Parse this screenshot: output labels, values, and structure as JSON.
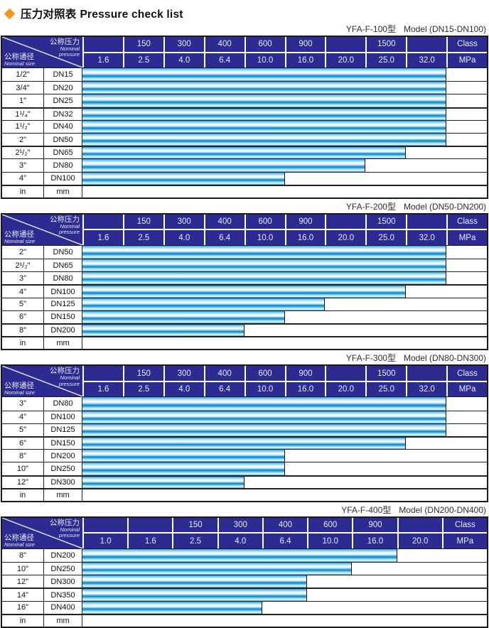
{
  "page": {
    "title_zh": "压力对照表",
    "title_en": "Pressure check list",
    "diamond_color": "#f7941d",
    "navy_color": "#2b2b91",
    "bar_color": "#29a3dd"
  },
  "header_labels": {
    "pressure_zh": "公称压力",
    "pressure_en1": "Nominal",
    "pressure_en2": "pressure",
    "size_zh": "公称通径",
    "size_en": "Nominal size"
  },
  "tables": [
    {
      "model": "YFA-F-100型",
      "range": "Model (DN15-DN100)",
      "classes": [
        "",
        "150",
        "300",
        "400",
        "600",
        "900",
        "",
        "1500",
        "",
        "Class"
      ],
      "mpa": [
        "1.6",
        "2.5",
        "4.0",
        "6.4",
        "10.0",
        "16.0",
        "20.0",
        "25.0",
        "32.0",
        "MPa"
      ],
      "rows": [
        {
          "size": "1/2\"",
          "dn": "DN15",
          "span": 9
        },
        {
          "size": "3/4\"",
          "dn": "DN20",
          "span": 9
        },
        {
          "size": "1\"",
          "dn": "DN25",
          "span": 9
        },
        {
          "size": "1¹/₄\"",
          "dn": "DN32",
          "span": 9
        },
        {
          "size": "1¹/₂\"",
          "dn": "DN40",
          "span": 9
        },
        {
          "size": "2\"",
          "dn": "DN50",
          "span": 9
        },
        {
          "size": "2¹/₂\"",
          "dn": "DN65",
          "span": 8
        },
        {
          "size": "3\"",
          "dn": "DN80",
          "span": 7
        },
        {
          "size": "4\"",
          "dn": "DN100",
          "span": 5
        }
      ],
      "unit_row": {
        "size": "in",
        "dn": "mm"
      }
    },
    {
      "model": "YFA-F-200型",
      "range": "Model (DN50-DN200)",
      "classes": [
        "",
        "150",
        "300",
        "400",
        "600",
        "900",
        "",
        "1500",
        "",
        "Class"
      ],
      "mpa": [
        "1.6",
        "2.5",
        "4.0",
        "6.4",
        "10.0",
        "16.0",
        "20.0",
        "25.0",
        "32.0",
        "MPa"
      ],
      "rows": [
        {
          "size": "2\"",
          "dn": "DN50",
          "span": 9
        },
        {
          "size": "2¹/₂\"",
          "dn": "DN65",
          "span": 9
        },
        {
          "size": "3\"",
          "dn": "DN80",
          "span": 9
        },
        {
          "size": "4\"",
          "dn": "DN100",
          "span": 8
        },
        {
          "size": "5\"",
          "dn": "DN125",
          "span": 6
        },
        {
          "size": "6\"",
          "dn": "DN150",
          "span": 5
        },
        {
          "size": "8\"",
          "dn": "DN200",
          "span": 4
        }
      ],
      "unit_row": {
        "size": "in",
        "dn": "mm"
      }
    },
    {
      "model": "YFA-F-300型",
      "range": "Model (DN80-DN300)",
      "classes": [
        "",
        "150",
        "300",
        "400",
        "600",
        "900",
        "",
        "1500",
        "",
        "Class"
      ],
      "mpa": [
        "1.6",
        "2.5",
        "4.0",
        "6.4",
        "10.0",
        "16.0",
        "20.0",
        "25.0",
        "32.0",
        "MPa"
      ],
      "rows": [
        {
          "size": "3\"",
          "dn": "DN80",
          "span": 9
        },
        {
          "size": "4\"",
          "dn": "DN100",
          "span": 9
        },
        {
          "size": "5\"",
          "dn": "DN125",
          "span": 9
        },
        {
          "size": "6\"",
          "dn": "DN150",
          "span": 8
        },
        {
          "size": "8\"",
          "dn": "DN200",
          "span": 5
        },
        {
          "size": "10\"",
          "dn": "DN250",
          "span": 5
        },
        {
          "size": "12\"",
          "dn": "DN300",
          "span": 4
        }
      ],
      "unit_row": {
        "size": "in",
        "dn": "mm"
      }
    },
    {
      "model": "YFA-F-400型",
      "range": "Model (DN200-DN400)",
      "classes": [
        "",
        "",
        "150",
        "300",
        "400",
        "600",
        "900",
        "",
        "Class"
      ],
      "mpa": [
        "1.0",
        "1.6",
        "2.5",
        "4.0",
        "6.4",
        "10.0",
        "16.0",
        "20.0",
        "MPa"
      ],
      "rows": [
        {
          "size": "8\"",
          "dn": "DN200",
          "span": 7
        },
        {
          "size": "10\"",
          "dn": "DN250",
          "span": 6
        },
        {
          "size": "12\"",
          "dn": "DN300",
          "span": 5
        },
        {
          "size": "14\"",
          "dn": "DN350",
          "span": 5
        },
        {
          "size": "16\"",
          "dn": "DN400",
          "span": 4
        }
      ],
      "unit_row": {
        "size": "in",
        "dn": "mm"
      }
    }
  ]
}
